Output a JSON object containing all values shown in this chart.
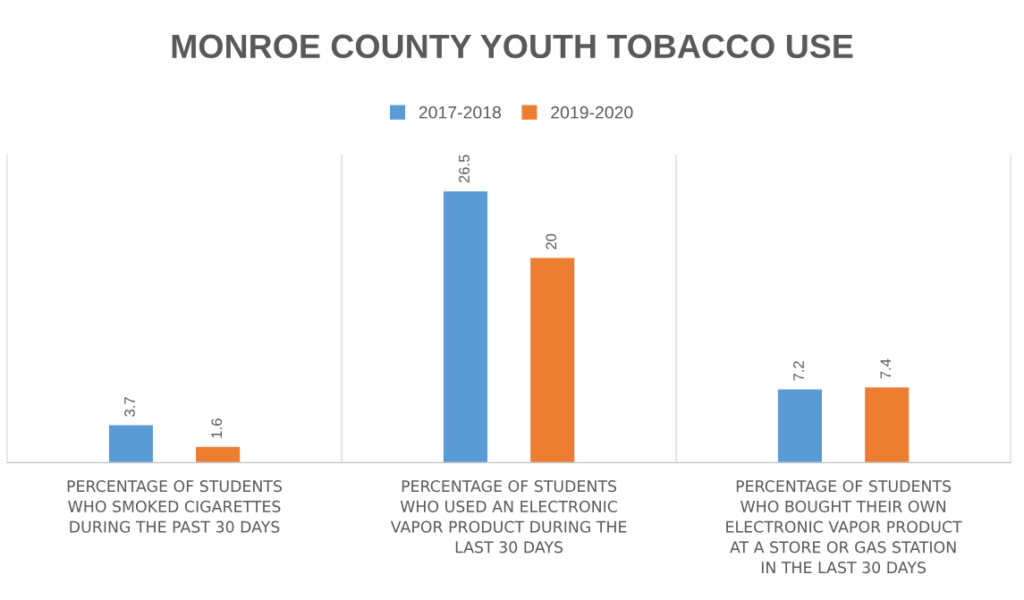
{
  "chart_data": {
    "type": "bar",
    "title": "MONROE COUNTY YOUTH TOBACCO USE",
    "categories": [
      "PERCENTAGE OF STUDENTS\nWHO SMOKED CIGARETTES\nDURING THE PAST 30 DAYS",
      "PERCENTAGE OF STUDENTS\nWHO USED AN ELECTRONIC\nVAPOR PRODUCT DURING THE\nLAST 30 DAYS",
      "PERCENTAGE OF STUDENTS\nWHO BOUGHT THEIR OWN\nELECTRONIC VAPOR PRODUCT\nAT A STORE OR GAS STATION\nIN THE LAST 30 DAYS"
    ],
    "series": [
      {
        "name": "2017-2018",
        "color": "#5b9bd5",
        "values": [
          3.7,
          26.5,
          7.2
        ]
      },
      {
        "name": "2019-2020",
        "color": "#ed7d31",
        "values": [
          1.6,
          20,
          7.4
        ]
      }
    ],
    "ylim": [
      0,
      30
    ],
    "data_labels": true,
    "legend": "top",
    "grid": "x",
    "tick_labels": "x"
  }
}
